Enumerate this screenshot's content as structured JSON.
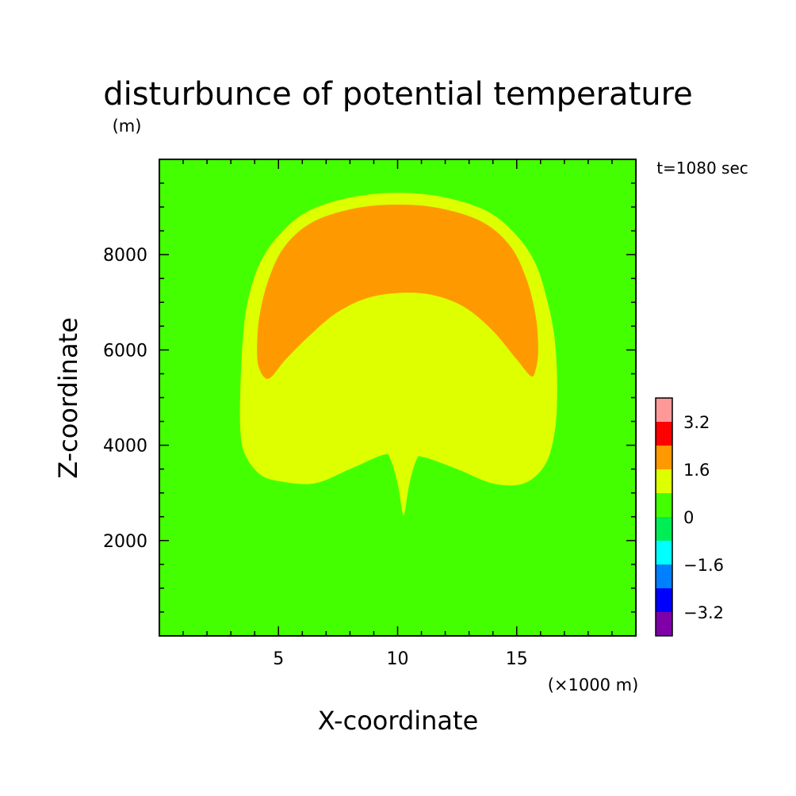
{
  "chart_data": {
    "type": "heatmap",
    "title": "disturbunce of potential temperature",
    "time_label": "t=1080 sec",
    "xlabel": "X-coordinate",
    "ylabel": "Z-coordinate",
    "x_unit": "(×1000 m)",
    "y_unit": "(m)",
    "xlim": [
      0,
      20
    ],
    "ylim": [
      0,
      10000
    ],
    "x_ticks": [
      5,
      10,
      15
    ],
    "x_tick_labels": [
      "5",
      "10",
      "15"
    ],
    "y_ticks": [
      2000,
      4000,
      6000,
      8000
    ],
    "y_tick_labels": [
      "2000",
      "4000",
      "6000",
      "8000"
    ],
    "grid": false,
    "legend": "right (colorbar)",
    "colorbar": {
      "levels": [
        -4.0,
        -3.2,
        -2.4,
        -1.6,
        -0.8,
        0.0,
        0.8,
        1.6,
        2.4,
        3.2,
        4.0
      ],
      "colors": [
        "#7f00a8",
        "#0000ff",
        "#0080ff",
        "#00ffff",
        "#00ee55",
        "#44ff00",
        "#ddff00",
        "#ff9900",
        "#ff0000",
        "#ff9999"
      ],
      "labels": [
        "-3.2",
        "−1.6",
        "0",
        "1.6",
        "3.2"
      ],
      "label_values": [
        -3.2,
        -1.6,
        0.0,
        1.6,
        3.2
      ],
      "label_text": [
        "−3.2",
        "−1.6",
        "0",
        "1.6",
        "3.2"
      ]
    },
    "background_level_color": "#44ff00",
    "regions": [
      {
        "name": "contour-0.8-1.6",
        "color": "#ddff00",
        "points": [
          [
            3.4,
            4.3
          ],
          [
            3.4,
            5.2
          ],
          [
            3.5,
            6.2
          ],
          [
            3.7,
            7.0
          ],
          [
            4.2,
            7.8
          ],
          [
            5.0,
            8.4
          ],
          [
            6.2,
            8.9
          ],
          [
            8.0,
            9.2
          ],
          [
            10.0,
            9.3
          ],
          [
            12.0,
            9.2
          ],
          [
            13.8,
            8.9
          ],
          [
            15.0,
            8.4
          ],
          [
            15.8,
            7.8
          ],
          [
            16.3,
            7.0
          ],
          [
            16.6,
            6.2
          ],
          [
            16.7,
            5.2
          ],
          [
            16.6,
            4.3
          ],
          [
            16.2,
            3.6
          ],
          [
            15.3,
            3.2
          ],
          [
            14.0,
            3.2
          ],
          [
            12.5,
            3.5
          ],
          [
            11.1,
            3.75
          ],
          [
            10.8,
            3.7
          ],
          [
            10.5,
            3.2
          ],
          [
            10.3,
            2.6
          ],
          [
            10.2,
            2.6
          ],
          [
            10.0,
            3.2
          ],
          [
            9.7,
            3.7
          ],
          [
            9.4,
            3.8
          ],
          [
            8.0,
            3.5
          ],
          [
            6.5,
            3.2
          ],
          [
            5.0,
            3.25
          ],
          [
            4.2,
            3.4
          ],
          [
            3.6,
            3.8
          ]
        ]
      },
      {
        "name": "contour-1.6-2.4",
        "color": "#ff9900",
        "points": [
          [
            4.1,
            6.0
          ],
          [
            4.2,
            6.7
          ],
          [
            4.6,
            7.5
          ],
          [
            5.3,
            8.2
          ],
          [
            6.5,
            8.7
          ],
          [
            8.3,
            8.98
          ],
          [
            10.0,
            9.05
          ],
          [
            11.7,
            8.98
          ],
          [
            13.5,
            8.7
          ],
          [
            14.7,
            8.2
          ],
          [
            15.4,
            7.5
          ],
          [
            15.8,
            6.7
          ],
          [
            15.9,
            6.0
          ],
          [
            15.8,
            5.6
          ],
          [
            15.6,
            5.45
          ],
          [
            15.0,
            5.8
          ],
          [
            14.0,
            6.4
          ],
          [
            12.8,
            6.9
          ],
          [
            11.5,
            7.15
          ],
          [
            10.2,
            7.2
          ],
          [
            8.8,
            7.1
          ],
          [
            7.5,
            6.8
          ],
          [
            6.3,
            6.3
          ],
          [
            5.3,
            5.8
          ],
          [
            4.6,
            5.4
          ],
          [
            4.2,
            5.6
          ]
        ]
      }
    ]
  }
}
